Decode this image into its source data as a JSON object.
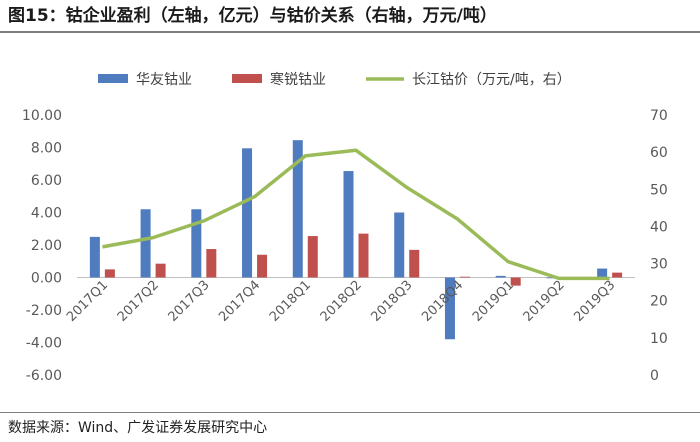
{
  "figure": {
    "title": "图15：钴企业盈利（左轴，亿元）与钴价关系（右轴，万元/吨）",
    "source": "数据来源：Wind、广发证券发展研究中心"
  },
  "chart_data": {
    "type": "bar+line",
    "title": "钴企业盈利（左轴，亿元）与钴价关系（右轴，万元/吨）",
    "categories": [
      "2017Q1",
      "2017Q2",
      "2017Q3",
      "2017Q4",
      "2018Q1",
      "2018Q2",
      "2018Q3",
      "2018Q4",
      "2019Q1",
      "2019Q2",
      "2019Q3"
    ],
    "series": [
      {
        "name": "华友钴业",
        "type": "bar",
        "axis": "left",
        "color": "#4f7bbf",
        "values": [
          2.5,
          4.2,
          4.2,
          7.95,
          8.45,
          6.55,
          4.0,
          -3.8,
          0.1,
          0.0,
          0.55
        ]
      },
      {
        "name": "寒锐钴业",
        "type": "bar",
        "axis": "left",
        "color": "#c0504d",
        "values": [
          0.5,
          0.85,
          1.75,
          1.4,
          2.55,
          2.7,
          1.7,
          0.05,
          -0.5,
          -0.15,
          0.3
        ]
      },
      {
        "name": "长江钴价（万元/吨，右）",
        "type": "line",
        "axis": "right",
        "color": "#9bbb59",
        "values": [
          34.5,
          37.0,
          41.5,
          48.0,
          59.0,
          60.5,
          50.5,
          42.0,
          30.5,
          26.0,
          26.0
        ]
      }
    ],
    "y_left": {
      "min": -6,
      "max": 10,
      "step": 2,
      "tick_labels": [
        "-6.00",
        "-4.00",
        "-2.00",
        "0.00",
        "2.00",
        "4.00",
        "6.00",
        "8.00",
        "10.00"
      ]
    },
    "y_right": {
      "min": 0,
      "max": 70,
      "step": 10,
      "tick_labels": [
        "0",
        "10",
        "20",
        "30",
        "40",
        "50",
        "60",
        "70"
      ]
    },
    "legend_position": "top",
    "grid": false
  }
}
